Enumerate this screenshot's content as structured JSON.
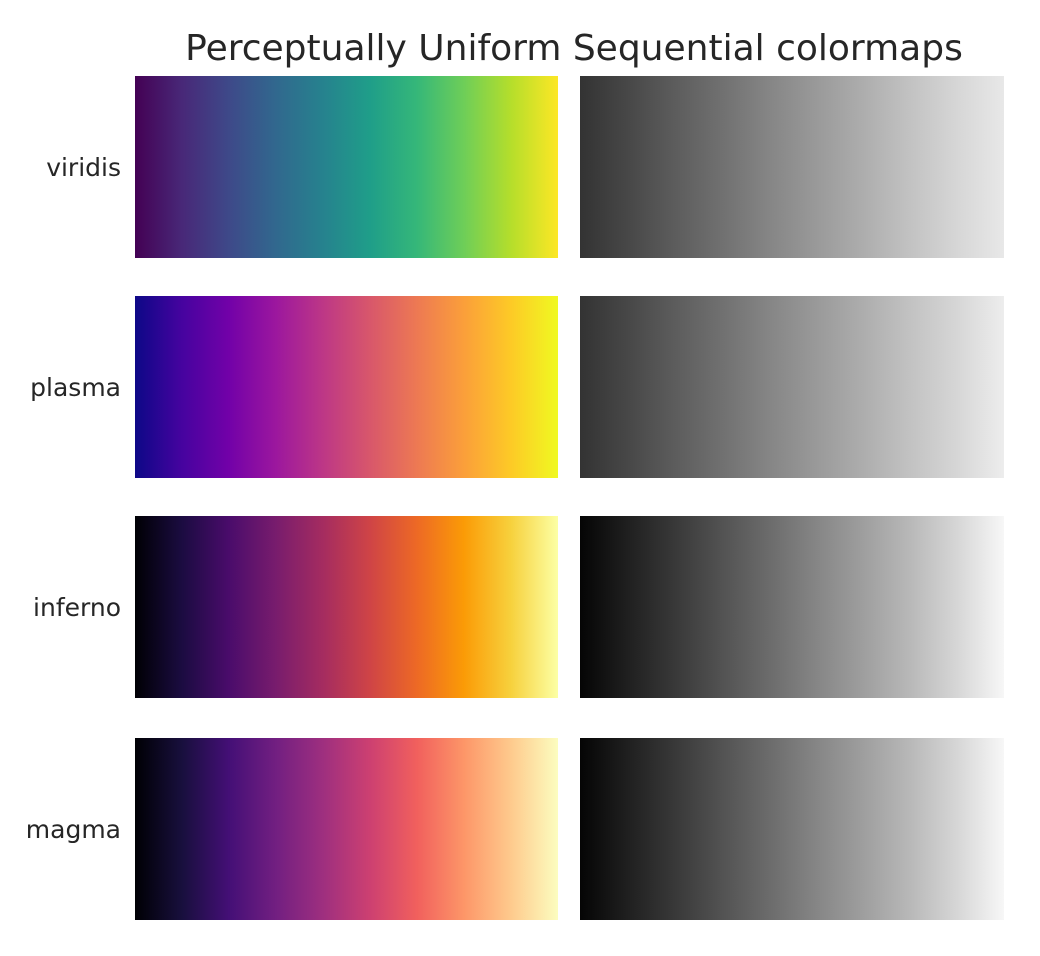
{
  "chart_data": {
    "type": "heatmap",
    "title": "Perceptually Uniform Sequential colormaps",
    "xlabel": "",
    "ylabel": "",
    "grid": false,
    "columns": [
      "color",
      "grayscale"
    ],
    "rows": [
      {
        "name": "viridis",
        "colors": [
          "#440154",
          "#482878",
          "#3e4989",
          "#31688e",
          "#26828e",
          "#1f9e89",
          "#35b779",
          "#6ece58",
          "#b5de2b",
          "#fde725"
        ],
        "gray": [
          "#333333",
          "#474747",
          "#5c5c5c",
          "#707070",
          "#858585",
          "#999999",
          "#adadad",
          "#c2c2c2",
          "#d6d6d6",
          "#e8e8e8"
        ]
      },
      {
        "name": "plasma",
        "colors": [
          "#0d0887",
          "#46039f",
          "#7201a8",
          "#9c179e",
          "#bd3786",
          "#d8576b",
          "#ed7953",
          "#fb9f3a",
          "#fdca26",
          "#f0f921"
        ],
        "gray": [
          "#333333",
          "#474747",
          "#5c5c5c",
          "#707070",
          "#858585",
          "#999999",
          "#adadad",
          "#c2c2c2",
          "#d6d6d6",
          "#ededed"
        ]
      },
      {
        "name": "inferno",
        "colors": [
          "#000004",
          "#1b0c41",
          "#4a0c6b",
          "#781c6d",
          "#a52c60",
          "#cf4446",
          "#ed6925",
          "#fb9b06",
          "#f7d13d",
          "#fcffa4"
        ],
        "gray": [
          "#050505",
          "#1f1f1f",
          "#383838",
          "#525252",
          "#6b6b6b",
          "#858585",
          "#9e9e9e",
          "#b8b8b8",
          "#d6d6d6",
          "#f7f7f7"
        ]
      },
      {
        "name": "magma",
        "colors": [
          "#000004",
          "#180f3d",
          "#440f76",
          "#721f81",
          "#9e2f7f",
          "#cd4071",
          "#f1605d",
          "#fd9668",
          "#feca8d",
          "#fcfdbf"
        ],
        "gray": [
          "#050505",
          "#1f1f1f",
          "#383838",
          "#525252",
          "#6b6b6b",
          "#858585",
          "#9e9e9e",
          "#b8b8b8",
          "#d6d6d6",
          "#f7f7f7"
        ]
      }
    ]
  }
}
